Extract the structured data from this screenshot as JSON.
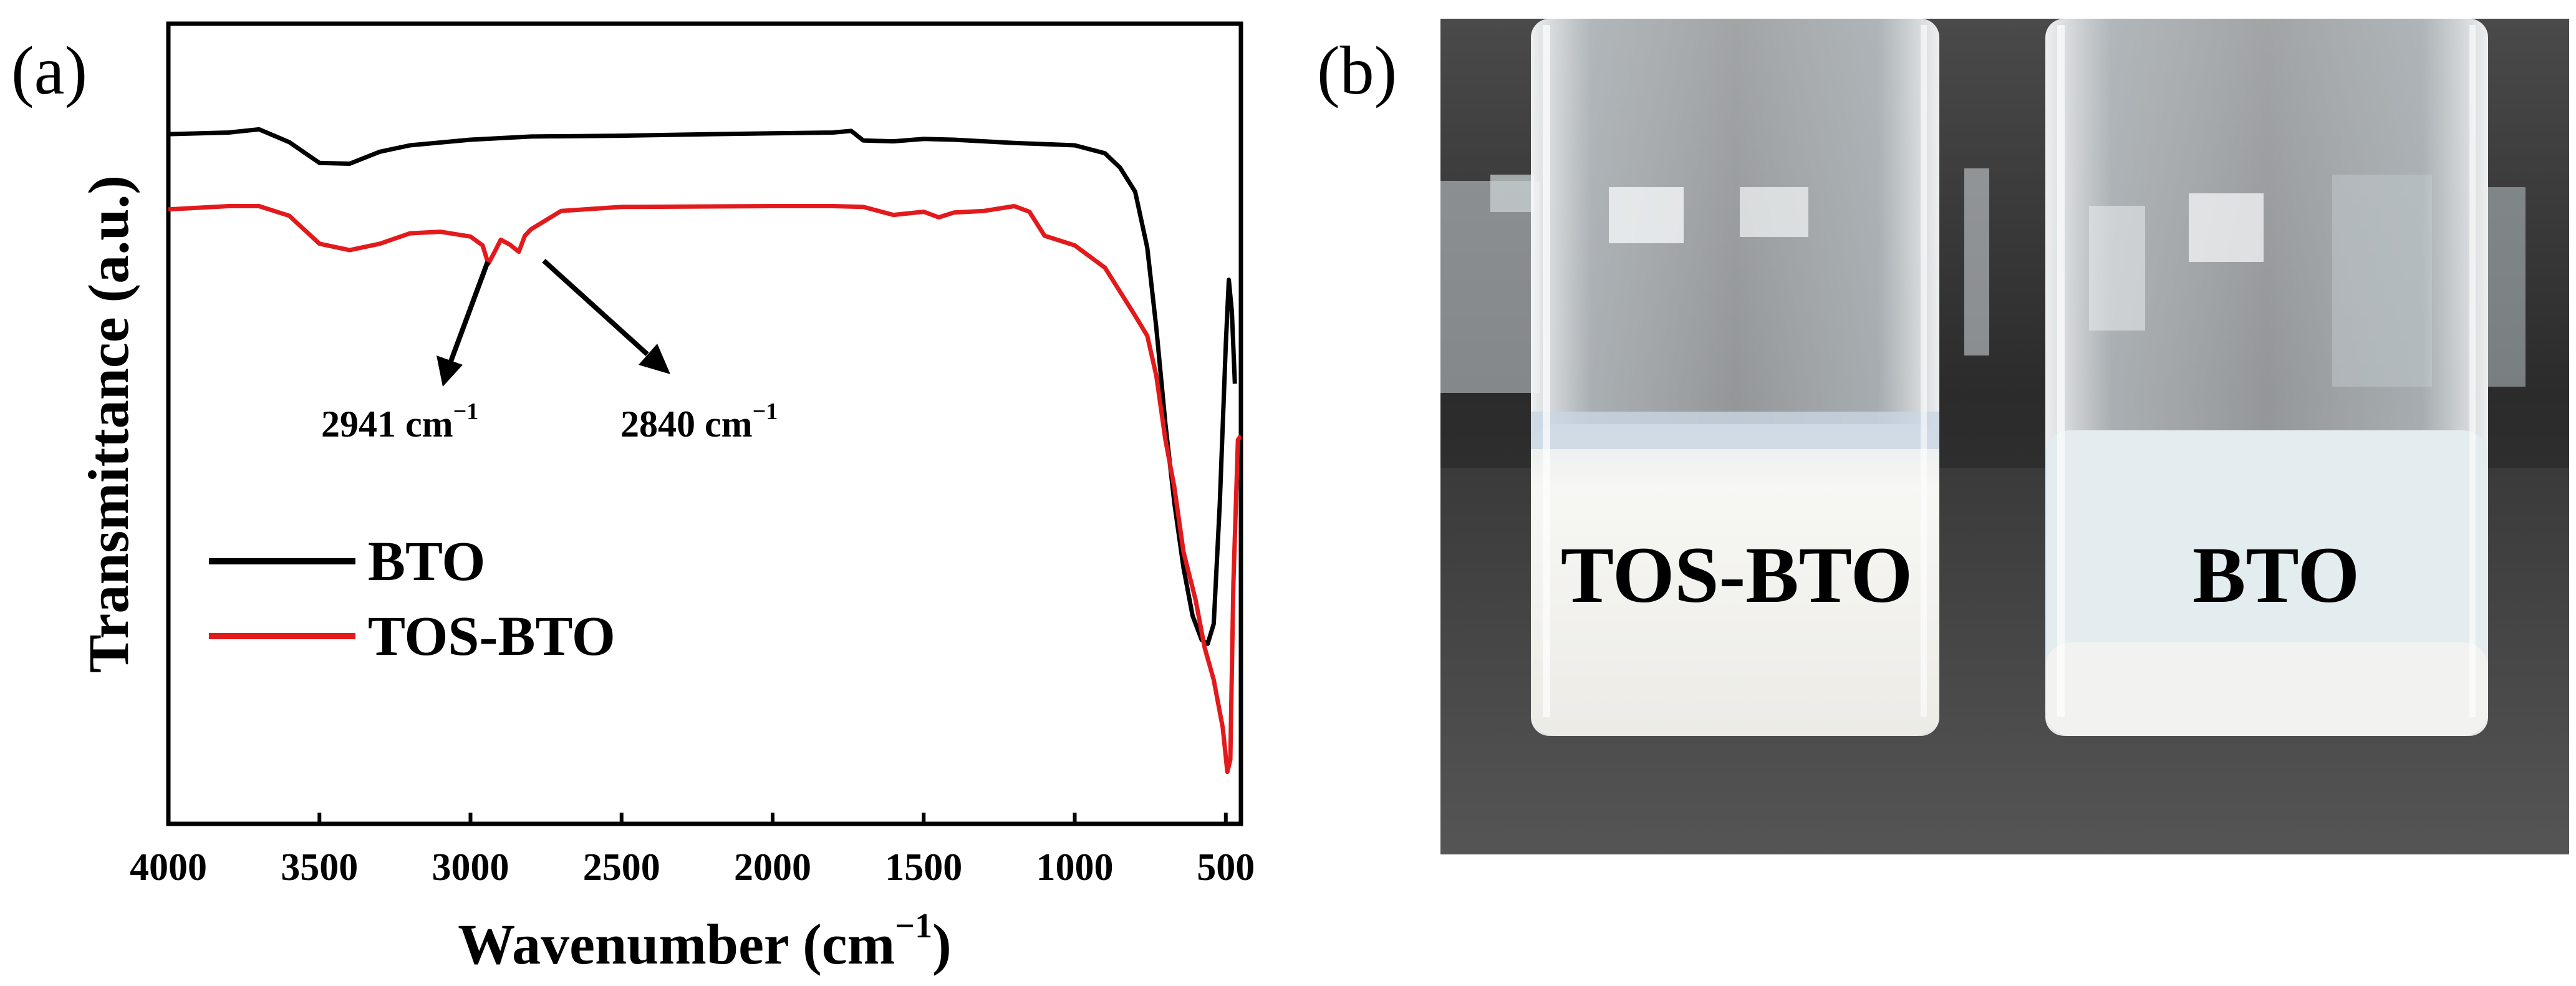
{
  "panel_a": {
    "label": "(a)"
  },
  "panel_b": {
    "label": "(b)",
    "photo_labels": [
      "TOS-BTO",
      "BTO"
    ],
    "colors": {
      "backdrop": "#3a3a3a",
      "bench": "#2e2e2e",
      "liquid": "#f1f1ee",
      "glass": "#e6eaec"
    }
  },
  "chart_data": {
    "type": "line",
    "title": "",
    "xlabel": "Wavenumber (cm",
    "xlabel_sup": "−1",
    "xlabel_tail": ")",
    "ylabel": "Transmittance (a.u.)",
    "xlim": [
      4000,
      450
    ],
    "ylim": [
      0,
      100
    ],
    "x_reversed": true,
    "x_ticks": [
      4000,
      3500,
      3000,
      2500,
      2000,
      1500,
      1000,
      500
    ],
    "x_tick_labels": [
      "4000",
      "3500",
      "3000",
      "2500",
      "2000",
      "1500",
      "1000",
      "500"
    ],
    "y_ticks_shown": false,
    "legend": {
      "placement": "lower-left"
    },
    "series": [
      {
        "name": "BTO",
        "color": "#000000",
        "points": [
          [
            4000,
            86.2
          ],
          [
            3800,
            86.4
          ],
          [
            3700,
            86.8
          ],
          [
            3600,
            85.2
          ],
          [
            3500,
            82.6
          ],
          [
            3400,
            82.5
          ],
          [
            3300,
            84.0
          ],
          [
            3200,
            84.8
          ],
          [
            3000,
            85.5
          ],
          [
            2800,
            85.9
          ],
          [
            2500,
            86.0
          ],
          [
            2200,
            86.2
          ],
          [
            2000,
            86.3
          ],
          [
            1800,
            86.4
          ],
          [
            1740,
            86.6
          ],
          [
            1700,
            85.4
          ],
          [
            1600,
            85.3
          ],
          [
            1500,
            85.6
          ],
          [
            1400,
            85.5
          ],
          [
            1200,
            85.1
          ],
          [
            1000,
            84.8
          ],
          [
            900,
            83.8
          ],
          [
            850,
            82.0
          ],
          [
            800,
            79.0
          ],
          [
            760,
            72.0
          ],
          [
            730,
            62.0
          ],
          [
            700,
            50.0
          ],
          [
            670,
            40.0
          ],
          [
            640,
            32.0
          ],
          [
            610,
            26.0
          ],
          [
            580,
            23.0
          ],
          [
            560,
            22.5
          ],
          [
            540,
            25.0
          ],
          [
            520,
            40.0
          ],
          [
            500,
            60.0
          ],
          [
            490,
            68.0
          ],
          [
            480,
            64.0
          ],
          [
            470,
            55.0
          ]
        ]
      },
      {
        "name": "TOS-BTO",
        "color": "#e31a1c",
        "points": [
          [
            4000,
            76.8
          ],
          [
            3800,
            77.2
          ],
          [
            3700,
            77.2
          ],
          [
            3600,
            76.0
          ],
          [
            3500,
            72.5
          ],
          [
            3400,
            71.7
          ],
          [
            3300,
            72.5
          ],
          [
            3200,
            73.8
          ],
          [
            3100,
            74.0
          ],
          [
            3000,
            73.4
          ],
          [
            2960,
            72.3
          ],
          [
            2941,
            70.0
          ],
          [
            2920,
            71.5
          ],
          [
            2900,
            73.0
          ],
          [
            2870,
            72.4
          ],
          [
            2840,
            71.5
          ],
          [
            2820,
            73.5
          ],
          [
            2800,
            74.3
          ],
          [
            2700,
            76.6
          ],
          [
            2500,
            77.1
          ],
          [
            2000,
            77.2
          ],
          [
            1800,
            77.2
          ],
          [
            1700,
            77.1
          ],
          [
            1600,
            76.1
          ],
          [
            1500,
            76.5
          ],
          [
            1450,
            75.8
          ],
          [
            1400,
            76.4
          ],
          [
            1300,
            76.6
          ],
          [
            1200,
            77.2
          ],
          [
            1150,
            76.5
          ],
          [
            1100,
            73.5
          ],
          [
            1000,
            72.3
          ],
          [
            900,
            69.5
          ],
          [
            850,
            66.5
          ],
          [
            800,
            63.5
          ],
          [
            760,
            61.0
          ],
          [
            730,
            56.0
          ],
          [
            700,
            48.0
          ],
          [
            670,
            42.0
          ],
          [
            640,
            34.0
          ],
          [
            600,
            28.0
          ],
          [
            570,
            22.0
          ],
          [
            540,
            18.0
          ],
          [
            510,
            12.0
          ],
          [
            495,
            6.5
          ],
          [
            485,
            8.0
          ],
          [
            475,
            30.0
          ],
          [
            460,
            48.0
          ],
          [
            450,
            48.5
          ]
        ]
      }
    ],
    "annotations": [
      {
        "text": "2941 cm",
        "sup": "−1",
        "peak_x": 2941
      },
      {
        "text": "2840 cm",
        "sup": "−1",
        "peak_x": 2840
      }
    ]
  }
}
